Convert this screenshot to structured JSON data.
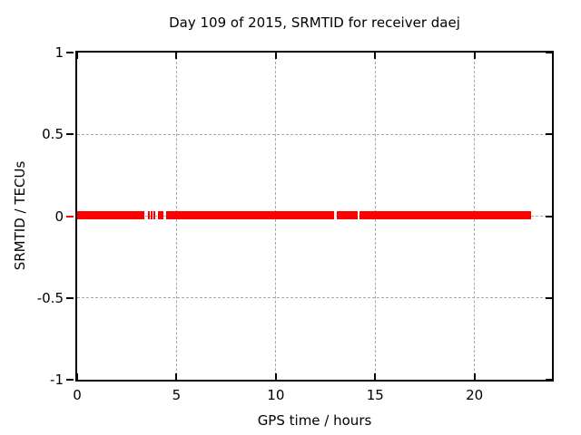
{
  "chart_data": {
    "type": "line",
    "title": "Day 109 of 2015, SRMTID for receiver daej",
    "xlabel": "GPS time / hours",
    "ylabel": "SRMTID / TECUs",
    "xlim": [
      0,
      23.9
    ],
    "ylim": [
      -1,
      1
    ],
    "x_ticks": [
      0,
      5,
      10,
      15,
      20
    ],
    "x_tick_labels": [
      "0",
      "5",
      "10",
      "15",
      "20"
    ],
    "y_ticks": [
      -1,
      -0.5,
      0,
      0.5,
      1
    ],
    "y_tick_labels": [
      "-1",
      "-0.5",
      "0",
      "0.5",
      "1"
    ],
    "grid": true,
    "grid_color": "#a8a8a8",
    "background_color": "#ffffff",
    "border_color": "#000000",
    "series": [
      {
        "name": "SRMTID",
        "color": "#ff0000",
        "y_value": 0,
        "line_thickness_px": 9,
        "segments_hours": [
          [
            0,
            3.38
          ],
          [
            3.56,
            3.66
          ],
          [
            3.7,
            3.79
          ],
          [
            3.84,
            3.93
          ],
          [
            4.07,
            4.34
          ],
          [
            4.48,
            12.93
          ],
          [
            13.07,
            14.12
          ],
          [
            14.23,
            22.85
          ]
        ]
      }
    ]
  }
}
